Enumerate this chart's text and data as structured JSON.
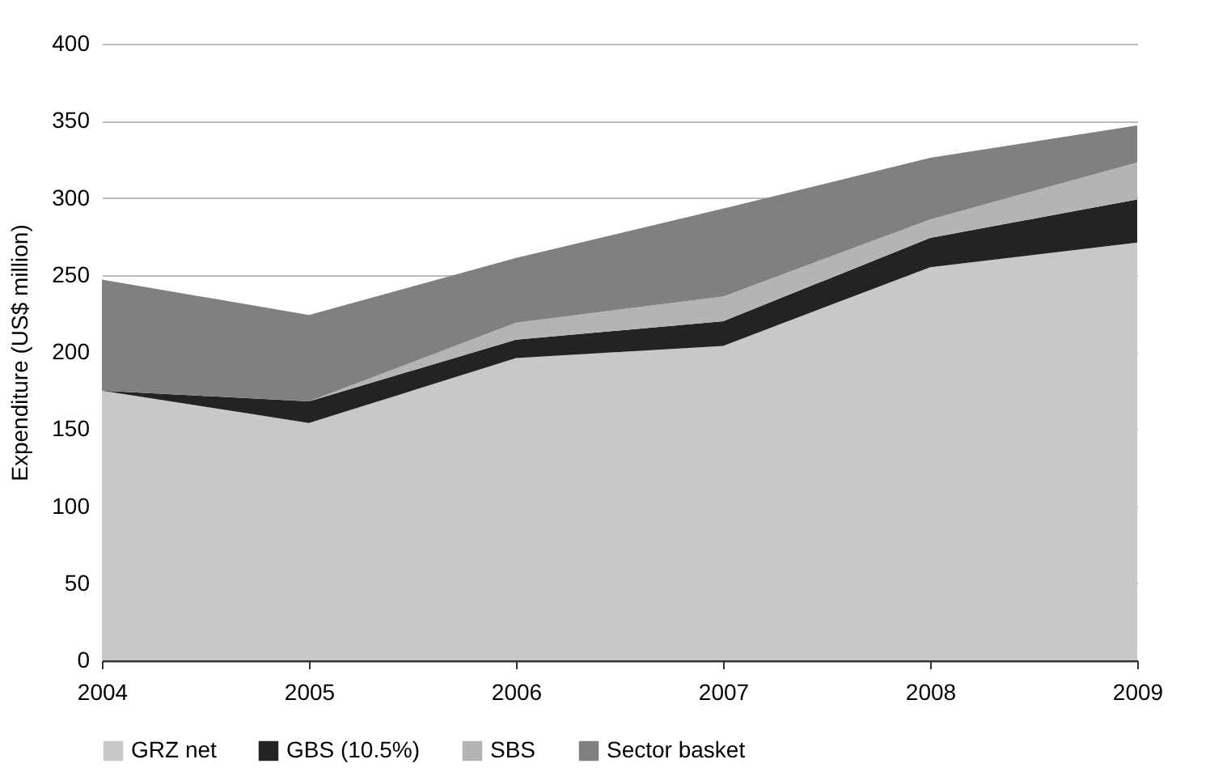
{
  "chart_data": {
    "type": "area",
    "stacked": true,
    "ylabel": "Expenditure (US$ million)",
    "x": [
      2004,
      2005,
      2006,
      2007,
      2008,
      2009
    ],
    "xlim": [
      2004,
      2009
    ],
    "xticks": [
      2004,
      2005,
      2006,
      2007,
      2008,
      2009
    ],
    "ylim": [
      0,
      400
    ],
    "yticks": [
      0,
      50,
      100,
      150,
      200,
      250,
      300,
      350,
      400
    ],
    "grid": "y",
    "legend": "bottom",
    "series": [
      {
        "name": "GRZ net",
        "color": "#c8c8c8",
        "values": [
          175,
          154,
          196,
          204,
          255,
          271
        ]
      },
      {
        "name": "GBS (10.5%)",
        "color": "#232323",
        "values": [
          0,
          14,
          12,
          16,
          19,
          28
        ]
      },
      {
        "name": "SBS",
        "color": "#b4b4b4",
        "values": [
          0,
          0,
          11,
          16,
          12,
          24
        ]
      },
      {
        "name": "Sector basket",
        "color": "#808080",
        "values": [
          72,
          56,
          42,
          57,
          40,
          24
        ]
      }
    ]
  }
}
